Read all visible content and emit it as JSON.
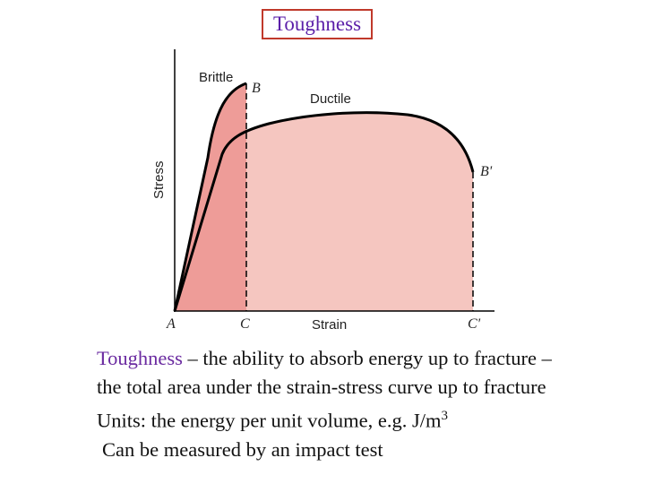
{
  "slide": {
    "title": "Toughness"
  },
  "diagram": {
    "labels": {
      "brittle": "Brittle",
      "ductile": "Ductile",
      "point_b": "B",
      "point_b_prime": "B'",
      "point_a": "A",
      "point_c": "C",
      "point_c_prime": "C'",
      "x_axis": "Strain",
      "y_axis": "Stress"
    },
    "colors": {
      "brittle_area": "#ee9c98",
      "ductile_area": "#f5c6c0",
      "curve": "#000000"
    }
  },
  "body_text": {
    "term": "Toughness",
    "definition_tail": " – the ability to absorb energy up to fracture –",
    "line2": "the total area under the strain-stress curve up to fracture",
    "units_prefix": "Units: the energy per unit volume, e.g. J/m",
    "units_exponent": "3",
    "line4": "Can be measured by an impact test"
  }
}
